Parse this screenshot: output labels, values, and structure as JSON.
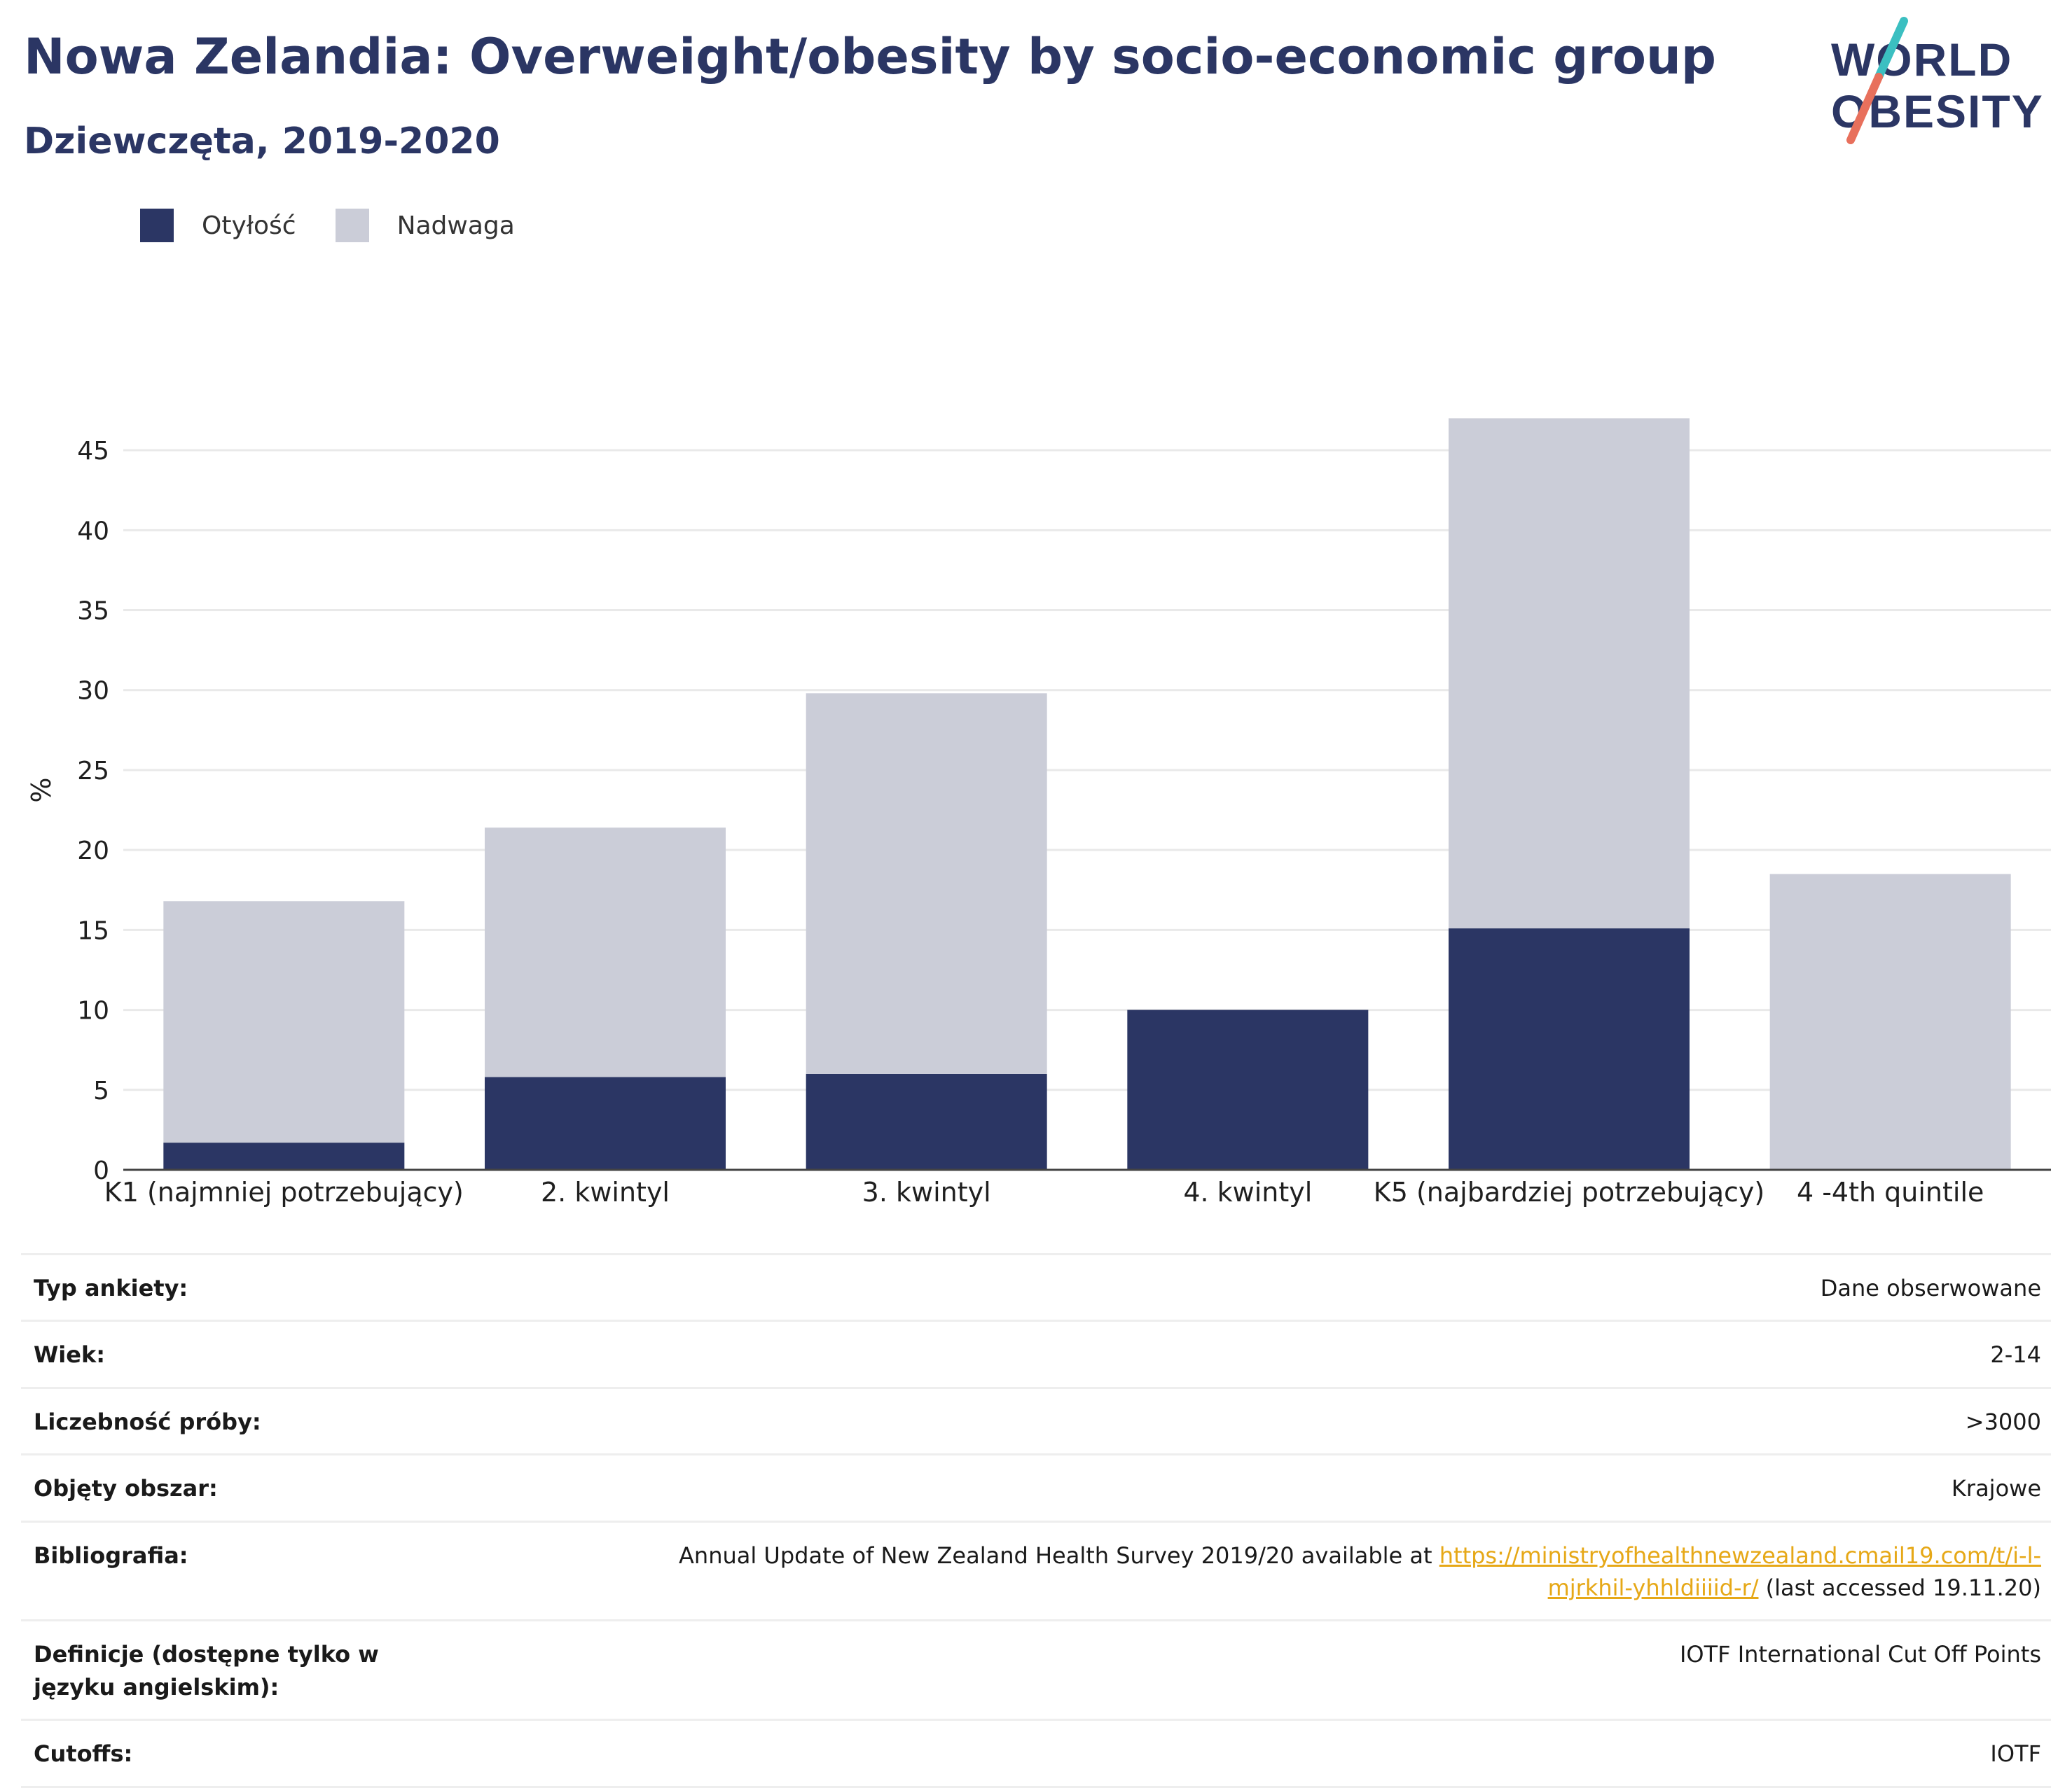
{
  "header": {
    "title": "Nowa Zelandia: Overweight/obesity by socio-economic group",
    "subtitle": "Dziewczęta, 2019-2020"
  },
  "logo": {
    "line1": "WORLD",
    "line2": "OBESITY"
  },
  "colors": {
    "obesity": "#2b3664",
    "overweight": "#cbcdd8",
    "text": "#1f1f1f",
    "grid": "#e9e9e9",
    "link": "#e6a817",
    "logo_teal": "#3bbfc1",
    "logo_coral": "#e8705c"
  },
  "chart_data": {
    "type": "bar",
    "stacked": true,
    "categories": [
      "K1 (najmniej potrzebujący)",
      "2. kwintyl",
      "3. kwintyl",
      "4. kwintyl",
      "K5 (najbardziej potrzebujący)",
      "4 -4th quintile"
    ],
    "series": [
      {
        "name": "Otyłość",
        "color": "#2b3664",
        "values": [
          1.7,
          5.8,
          6.0,
          10.0,
          15.1,
          0
        ]
      },
      {
        "name": "Nadwaga",
        "color": "#cbcdd8",
        "values": [
          15.1,
          15.6,
          23.8,
          0,
          31.9,
          18.5
        ]
      }
    ],
    "ylabel": "%",
    "xlabel": "",
    "ylim": [
      0,
      47.5
    ],
    "yticks": [
      0,
      5,
      10,
      15,
      20,
      25,
      30,
      35,
      40,
      45
    ],
    "grid": true,
    "legend": "top-left"
  },
  "info": {
    "survey_type": {
      "label": "Typ ankiety:",
      "value": "Dane obserwowane"
    },
    "age": {
      "label": "Wiek:",
      "value": "2-14"
    },
    "sample": {
      "label": "Liczebność próby:",
      "value": ">3000"
    },
    "area": {
      "label": "Objęty obszar:",
      "value": "Krajowe"
    },
    "bibliography": {
      "label": "Bibliografia:",
      "text_before": "Annual Update of New Zealand Health Survey 2019/20 available at ",
      "link": "https://ministryofhealthnewzealand.cmail19.com/t/i-l-mjrkhil-yhhldiiiid-r/",
      "text_after": " (last accessed 19.11.20)"
    },
    "definitions": {
      "label": "Definicje (dostępne tylko w języku angielskim):",
      "value": "IOTF International Cut Off Points"
    },
    "cutoffs": {
      "label": "Cutoffs:",
      "value": "IOTF"
    }
  }
}
